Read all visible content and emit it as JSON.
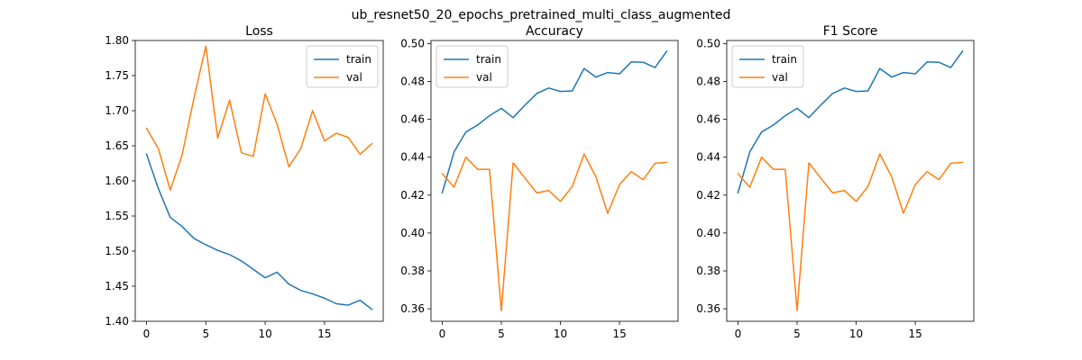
{
  "suptitle": "ub_resnet50_20_epochs_pretrained_multi_class_augmented",
  "colors": {
    "train": "#1f77b4",
    "val": "#ff7f0e"
  },
  "chart_data": [
    {
      "type": "line",
      "title": "Loss",
      "xlabel": "",
      "ylabel": "",
      "xlim": [
        -0.95,
        19.95
      ],
      "ylim": [
        1.4,
        1.8
      ],
      "xticks": [
        0,
        5,
        10,
        15
      ],
      "xtick_labels": [
        "0",
        "5",
        "10",
        "15"
      ],
      "yticks": [
        1.4,
        1.45,
        1.5,
        1.55,
        1.6,
        1.65,
        1.7,
        1.75,
        1.8
      ],
      "ytick_labels": [
        "1.40",
        "1.45",
        "1.50",
        "1.55",
        "1.60",
        "1.65",
        "1.70",
        "1.75",
        "1.80"
      ],
      "legend": "upper right",
      "grid": false,
      "x": [
        0,
        1,
        2,
        3,
        4,
        5,
        6,
        7,
        8,
        9,
        10,
        11,
        12,
        13,
        14,
        15,
        16,
        17,
        18,
        19
      ],
      "series": [
        {
          "name": "train",
          "values": [
            1.638,
            1.589,
            1.548,
            1.535,
            1.518,
            1.509,
            1.501,
            1.495,
            1.486,
            1.474,
            1.462,
            1.47,
            1.453,
            1.444,
            1.439,
            1.433,
            1.425,
            1.423,
            1.43,
            1.417
          ]
        },
        {
          "name": "val",
          "values": [
            1.675,
            1.646,
            1.587,
            1.637,
            1.718,
            1.792,
            1.661,
            1.715,
            1.64,
            1.635,
            1.724,
            1.681,
            1.62,
            1.646,
            1.7,
            1.657,
            1.668,
            1.662,
            1.638,
            1.653
          ]
        }
      ]
    },
    {
      "type": "line",
      "title": "Accuracy",
      "xlabel": "",
      "ylabel": "",
      "xlim": [
        -0.95,
        19.95
      ],
      "ylim": [
        0.3534,
        0.5016
      ],
      "xticks": [
        0,
        5,
        10,
        15
      ],
      "xtick_labels": [
        "0",
        "5",
        "10",
        "15"
      ],
      "yticks": [
        0.36,
        0.38,
        0.4,
        0.42,
        0.44,
        0.46,
        0.48,
        0.5
      ],
      "ytick_labels": [
        "0.36",
        "0.38",
        "0.40",
        "0.42",
        "0.44",
        "0.46",
        "0.48",
        "0.50"
      ],
      "legend": "upper left",
      "grid": false,
      "x": [
        0,
        1,
        2,
        3,
        4,
        5,
        6,
        7,
        8,
        9,
        10,
        11,
        12,
        13,
        14,
        15,
        16,
        17,
        18,
        19
      ],
      "series": [
        {
          "name": "train",
          "values": [
            0.4212,
            0.4428,
            0.4533,
            0.457,
            0.4619,
            0.4658,
            0.4609,
            0.4675,
            0.4736,
            0.4765,
            0.4747,
            0.475,
            0.4868,
            0.4823,
            0.4847,
            0.484,
            0.4903,
            0.4901,
            0.4873,
            0.496
          ]
        },
        {
          "name": "val",
          "values": [
            0.4313,
            0.4242,
            0.44,
            0.4336,
            0.4336,
            0.359,
            0.437,
            0.429,
            0.4212,
            0.4224,
            0.4167,
            0.4246,
            0.4417,
            0.4297,
            0.4104,
            0.4256,
            0.4324,
            0.4281,
            0.4368,
            0.4373
          ]
        }
      ]
    },
    {
      "type": "line",
      "title": "F1 Score",
      "xlabel": "",
      "ylabel": "",
      "xlim": [
        -0.95,
        19.95
      ],
      "ylim": [
        0.3534,
        0.5016
      ],
      "xticks": [
        0,
        5,
        10,
        15
      ],
      "xtick_labels": [
        "0",
        "5",
        "10",
        "15"
      ],
      "yticks": [
        0.36,
        0.38,
        0.4,
        0.42,
        0.44,
        0.46,
        0.48,
        0.5
      ],
      "ytick_labels": [
        "0.36",
        "0.38",
        "0.40",
        "0.42",
        "0.44",
        "0.46",
        "0.48",
        "0.50"
      ],
      "legend": "upper left",
      "grid": false,
      "x": [
        0,
        1,
        2,
        3,
        4,
        5,
        6,
        7,
        8,
        9,
        10,
        11,
        12,
        13,
        14,
        15,
        16,
        17,
        18,
        19
      ],
      "series": [
        {
          "name": "train",
          "values": [
            0.4212,
            0.4428,
            0.4533,
            0.457,
            0.4619,
            0.4658,
            0.4609,
            0.4675,
            0.4736,
            0.4765,
            0.4747,
            0.475,
            0.4868,
            0.4823,
            0.4847,
            0.484,
            0.4903,
            0.4901,
            0.4873,
            0.496
          ]
        },
        {
          "name": "val",
          "values": [
            0.4313,
            0.4242,
            0.44,
            0.4336,
            0.4336,
            0.359,
            0.437,
            0.429,
            0.4212,
            0.4224,
            0.4167,
            0.4246,
            0.4417,
            0.4297,
            0.4104,
            0.4256,
            0.4324,
            0.4281,
            0.4368,
            0.4373
          ]
        }
      ]
    }
  ]
}
